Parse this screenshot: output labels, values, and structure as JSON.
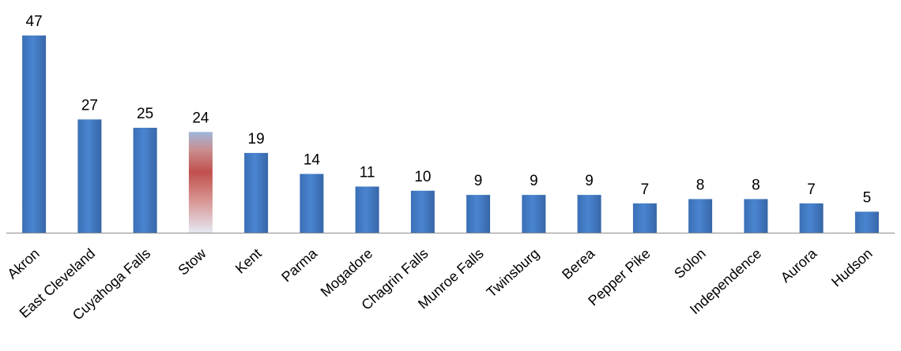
{
  "chart_data": {
    "type": "bar",
    "title": "",
    "xlabel": "",
    "ylabel": "",
    "categories": [
      "Akron",
      "East Cleveland",
      "Cuyahoga Falls",
      "Stow",
      "Kent",
      "Parma",
      "Mogadore",
      "Chagrin Falls",
      "Munroe Falls",
      "Twinsburg",
      "Berea",
      "Pepper Pike",
      "Solon",
      "Independence",
      "Aurora",
      "Hudson"
    ],
    "values": [
      47,
      27,
      25,
      24,
      19,
      14,
      11,
      10,
      9,
      9,
      9,
      7,
      8,
      8,
      7,
      5
    ],
    "data_labels": [
      "47",
      "27",
      "25",
      "24",
      "19",
      "14",
      "11",
      "10",
      "9",
      "9",
      "9",
      "7",
      "8",
      "8",
      "7",
      "5"
    ],
    "ylim": [
      0,
      47
    ],
    "grid": false,
    "legend": "none",
    "highlight_category": "Stow",
    "colors": {
      "bar": "#3f78c3",
      "bar_dark": "#2f5f9e",
      "highlight": "#c0504d",
      "axis": "#8c8c8c"
    }
  }
}
